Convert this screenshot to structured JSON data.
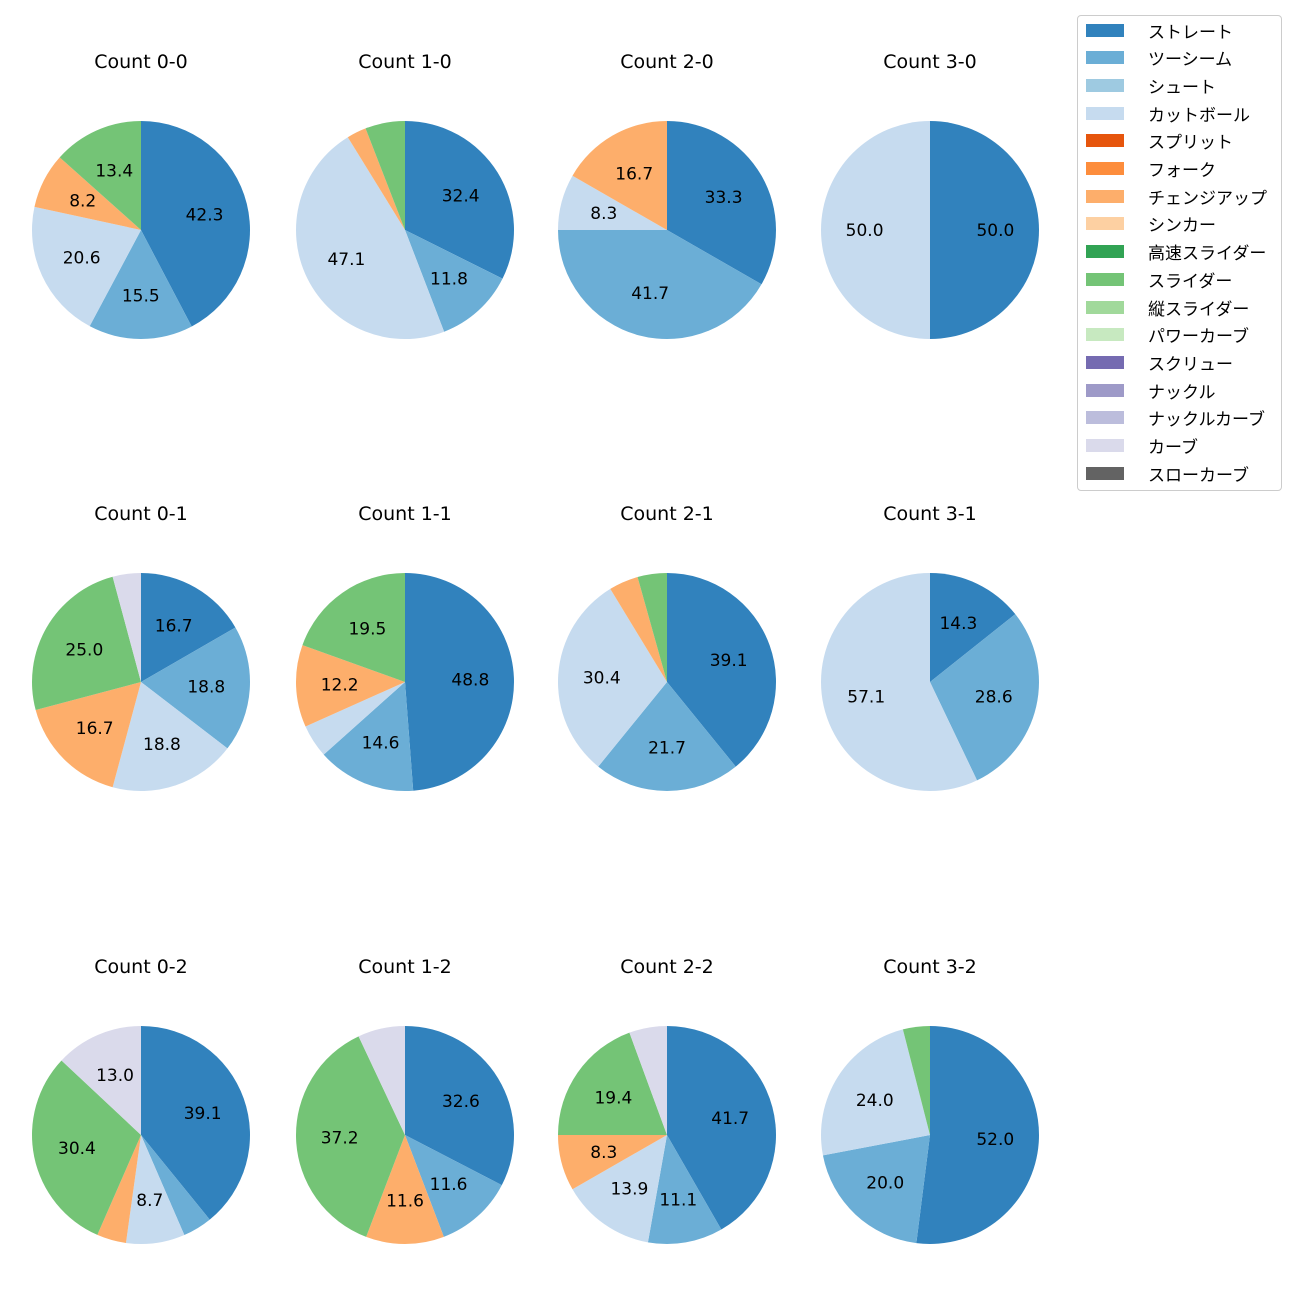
{
  "colors": {
    "ストレート": "#3182bd",
    "ツーシーム": "#6baed6",
    "シュート": "#9ecae1",
    "カットボール": "#c6dbef",
    "スプリット": "#e6550d",
    "フォーク": "#fd8d3c",
    "チェンジアップ": "#fdae6b",
    "シンカー": "#fdd0a2",
    "高速スライダー": "#31a354",
    "スライダー": "#74c476",
    "縦スライダー": "#a1d99b",
    "パワーカーブ": "#c7e9c0",
    "スクリュー": "#756bb1",
    "ナックル": "#9e9ac8",
    "ナックルカーブ": "#bcbddc",
    "カーブ": "#dadaeb",
    "スローカーブ": "#636363"
  },
  "chart_data": {
    "type": "pie",
    "legend": [
      "ストレート",
      "ツーシーム",
      "シュート",
      "カットボール",
      "スプリット",
      "フォーク",
      "チェンジアップ",
      "シンカー",
      "高速スライダー",
      "スライダー",
      "縦スライダー",
      "パワーカーブ",
      "スクリュー",
      "ナックル",
      "ナックルカーブ",
      "カーブ",
      "スローカーブ"
    ],
    "legend_position": "top-right",
    "pies": [
      {
        "title": "Count 0-0",
        "slices": [
          {
            "pitch": "ストレート",
            "value": 42.3,
            "label": "42.3"
          },
          {
            "pitch": "ツーシーム",
            "value": 15.5,
            "label": "15.5"
          },
          {
            "pitch": "カットボール",
            "value": 20.6,
            "label": "20.6"
          },
          {
            "pitch": "チェンジアップ",
            "value": 8.2,
            "label": "8.2"
          },
          {
            "pitch": "スライダー",
            "value": 13.4,
            "label": "13.4"
          }
        ]
      },
      {
        "title": "Count 1-0",
        "slices": [
          {
            "pitch": "ストレート",
            "value": 32.4,
            "label": "32.4"
          },
          {
            "pitch": "ツーシーム",
            "value": 11.8,
            "label": "11.8"
          },
          {
            "pitch": "カットボール",
            "value": 47.1,
            "label": "47.1"
          },
          {
            "pitch": "チェンジアップ",
            "value": 2.9,
            "label": ""
          },
          {
            "pitch": "スライダー",
            "value": 5.9,
            "label": ""
          }
        ]
      },
      {
        "title": "Count 2-0",
        "slices": [
          {
            "pitch": "ストレート",
            "value": 33.3,
            "label": "33.3"
          },
          {
            "pitch": "ツーシーム",
            "value": 41.7,
            "label": "41.7"
          },
          {
            "pitch": "カットボール",
            "value": 8.3,
            "label": "8.3"
          },
          {
            "pitch": "チェンジアップ",
            "value": 16.7,
            "label": "16.7"
          }
        ]
      },
      {
        "title": "Count 3-0",
        "slices": [
          {
            "pitch": "ストレート",
            "value": 50.0,
            "label": "50.0"
          },
          {
            "pitch": "カットボール",
            "value": 50.0,
            "label": "50.0"
          }
        ]
      },
      {
        "title": "Count 0-1",
        "slices": [
          {
            "pitch": "ストレート",
            "value": 16.7,
            "label": "16.7"
          },
          {
            "pitch": "ツーシーム",
            "value": 18.8,
            "label": "18.8"
          },
          {
            "pitch": "カットボール",
            "value": 18.8,
            "label": "18.8"
          },
          {
            "pitch": "チェンジアップ",
            "value": 16.7,
            "label": "16.7"
          },
          {
            "pitch": "スライダー",
            "value": 25.0,
            "label": "25.0"
          },
          {
            "pitch": "カーブ",
            "value": 4.2,
            "label": ""
          }
        ]
      },
      {
        "title": "Count 1-1",
        "slices": [
          {
            "pitch": "ストレート",
            "value": 48.8,
            "label": "48.8"
          },
          {
            "pitch": "ツーシーム",
            "value": 14.6,
            "label": "14.6"
          },
          {
            "pitch": "カットボール",
            "value": 4.9,
            "label": ""
          },
          {
            "pitch": "チェンジアップ",
            "value": 12.2,
            "label": "12.2"
          },
          {
            "pitch": "スライダー",
            "value": 19.5,
            "label": "19.5"
          }
        ]
      },
      {
        "title": "Count 2-1",
        "slices": [
          {
            "pitch": "ストレート",
            "value": 39.1,
            "label": "39.1"
          },
          {
            "pitch": "ツーシーム",
            "value": 21.7,
            "label": "21.7"
          },
          {
            "pitch": "カットボール",
            "value": 30.4,
            "label": "30.4"
          },
          {
            "pitch": "チェンジアップ",
            "value": 4.35,
            "label": ""
          },
          {
            "pitch": "スライダー",
            "value": 4.35,
            "label": ""
          }
        ]
      },
      {
        "title": "Count 3-1",
        "slices": [
          {
            "pitch": "ストレート",
            "value": 14.3,
            "label": "14.3"
          },
          {
            "pitch": "ツーシーム",
            "value": 28.6,
            "label": "28.6"
          },
          {
            "pitch": "カットボール",
            "value": 57.1,
            "label": "57.1"
          }
        ]
      },
      {
        "title": "Count 0-2",
        "slices": [
          {
            "pitch": "ストレート",
            "value": 39.1,
            "label": "39.1"
          },
          {
            "pitch": "ツーシーム",
            "value": 4.35,
            "label": ""
          },
          {
            "pitch": "カットボール",
            "value": 8.7,
            "label": "8.7"
          },
          {
            "pitch": "チェンジアップ",
            "value": 4.35,
            "label": ""
          },
          {
            "pitch": "スライダー",
            "value": 30.4,
            "label": "30.4"
          },
          {
            "pitch": "カーブ",
            "value": 13.0,
            "label": "13.0"
          }
        ]
      },
      {
        "title": "Count 1-2",
        "slices": [
          {
            "pitch": "ストレート",
            "value": 32.6,
            "label": "32.6"
          },
          {
            "pitch": "ツーシーム",
            "value": 11.6,
            "label": "11.6"
          },
          {
            "pitch": "チェンジアップ",
            "value": 11.6,
            "label": "11.6"
          },
          {
            "pitch": "スライダー",
            "value": 37.2,
            "label": "37.2"
          },
          {
            "pitch": "カーブ",
            "value": 7.0,
            "label": ""
          }
        ]
      },
      {
        "title": "Count 2-2",
        "slices": [
          {
            "pitch": "ストレート",
            "value": 41.7,
            "label": "41.7"
          },
          {
            "pitch": "ツーシーム",
            "value": 11.1,
            "label": "11.1"
          },
          {
            "pitch": "カットボール",
            "value": 13.9,
            "label": "13.9"
          },
          {
            "pitch": "チェンジアップ",
            "value": 8.3,
            "label": "8.3"
          },
          {
            "pitch": "スライダー",
            "value": 19.4,
            "label": "19.4"
          },
          {
            "pitch": "カーブ",
            "value": 5.6,
            "label": ""
          }
        ]
      },
      {
        "title": "Count 3-2",
        "slices": [
          {
            "pitch": "ストレート",
            "value": 52.0,
            "label": "52.0"
          },
          {
            "pitch": "ツーシーム",
            "value": 20.0,
            "label": "20.0"
          },
          {
            "pitch": "カットボール",
            "value": 24.0,
            "label": "24.0"
          },
          {
            "pitch": "スライダー",
            "value": 4.0,
            "label": ""
          }
        ]
      }
    ]
  }
}
